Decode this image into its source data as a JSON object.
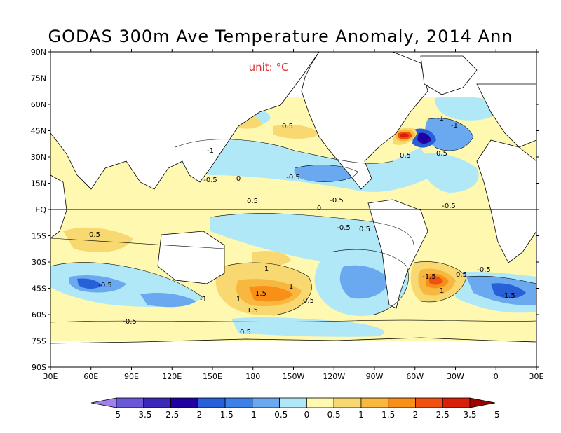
{
  "title": "GODAS 300m Ave Temperature Anomaly, 2014 Ann",
  "unit_label": "unit: °C",
  "lat_labels": [
    "90N",
    "75N",
    "60N",
    "45N",
    "30N",
    "15N",
    "EQ",
    "15S",
    "30S",
    "45S",
    "60S",
    "75S",
    "90S"
  ],
  "lon_labels": [
    "30E",
    "60E",
    "90E",
    "120E",
    "150E",
    "180",
    "150W",
    "120W",
    "90W",
    "60W",
    "30W",
    "0",
    "30E"
  ],
  "colorbar": {
    "labels": [
      "-5",
      "-3.5",
      "-2.5",
      "-2",
      "-1.5",
      "-1",
      "-0.5",
      "0",
      "0.5",
      "1",
      "1.5",
      "2",
      "2.5",
      "3.5",
      "5"
    ],
    "colors": [
      "#a080f0",
      "#6a58d8",
      "#3c28b8",
      "#2000a0",
      "#2860d8",
      "#3c80e8",
      "#6aa8f0",
      "#b0e8f8",
      "#fff8b0",
      "#f8d870",
      "#f8b840",
      "#f89018",
      "#f05010",
      "#d82008",
      "#a00000"
    ]
  },
  "contour_labels": [
    "0.5",
    "-0.5",
    "0",
    "-0.5",
    "0.5",
    "-1",
    "-0.5",
    "-0.5",
    "0",
    "-1",
    "0.5",
    "0.5",
    "-0.5",
    "0.5",
    "1.5",
    "1",
    "-1",
    "1",
    "-1.5",
    "1",
    "0.5",
    "-0.5",
    "-1.5",
    "1",
    "1.5",
    "0.5",
    "-0.5",
    "-0.5",
    "0.5",
    "-1",
    "0.5"
  ]
}
